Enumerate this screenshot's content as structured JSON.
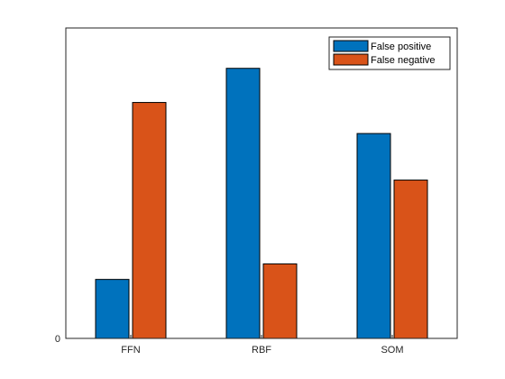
{
  "chart_data": {
    "type": "bar",
    "categories": [
      "FFN",
      "RBF",
      "SOM"
    ],
    "series": [
      {
        "name": "False positive",
        "values": [
          0.19,
          0.87,
          0.66
        ],
        "color": "#0072BD"
      },
      {
        "name": "False negative",
        "values": [
          0.76,
          0.24,
          0.51
        ],
        "color": "#D95319"
      }
    ],
    "ylim": [
      0,
      1
    ],
    "y_ticks": [
      0
    ],
    "y_tick_labels": [
      "0"
    ],
    "legend_position": "top-right",
    "grid": false,
    "title": "",
    "xlabel": "",
    "ylabel": ""
  }
}
